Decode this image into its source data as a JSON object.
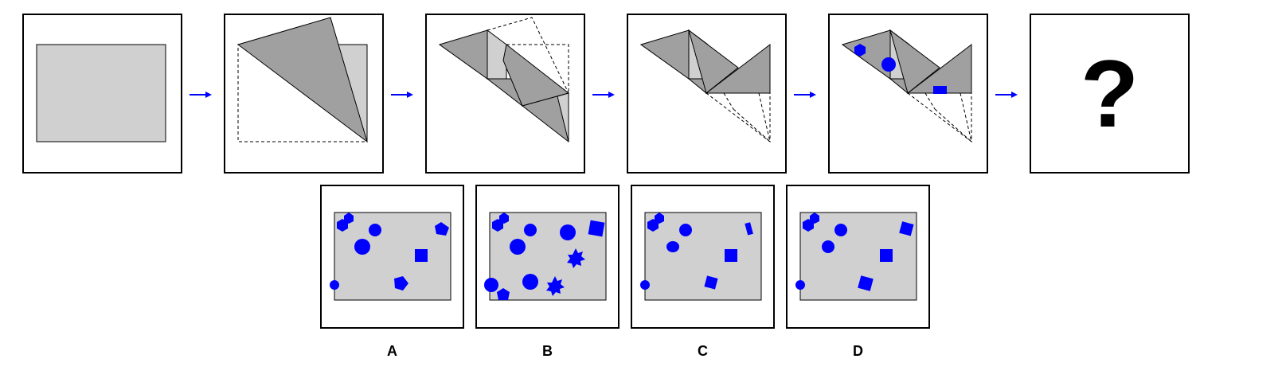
{
  "colors": {
    "paper": "#d0d0d0",
    "fold": "#a0a0a0",
    "punch": "#0000ff",
    "arrow": "#0000ff",
    "border": "#000000"
  },
  "sequence": {
    "steps": [
      "unfolded-rectangle",
      "diagonal-fold",
      "second-fold",
      "third-fold",
      "punched-holes"
    ],
    "unknown": "?"
  },
  "options": [
    {
      "label": "A",
      "holes": [
        "hexagon",
        "hexagon",
        "circle",
        "circle",
        "pentagon",
        "square",
        "circle",
        "pentagon"
      ]
    },
    {
      "label": "B",
      "holes": [
        "hexagon",
        "hexagon",
        "circle",
        "circle",
        "square",
        "circle",
        "star",
        "circle",
        "hexagon",
        "circle",
        "star"
      ]
    },
    {
      "label": "C",
      "holes": [
        "hexagon",
        "hexagon",
        "circle",
        "ellipse",
        "rectangle",
        "square",
        "circle",
        "square"
      ]
    },
    {
      "label": "D",
      "holes": [
        "hexagon",
        "hexagon",
        "circle",
        "circle",
        "square",
        "square",
        "circle",
        "square"
      ]
    }
  ]
}
